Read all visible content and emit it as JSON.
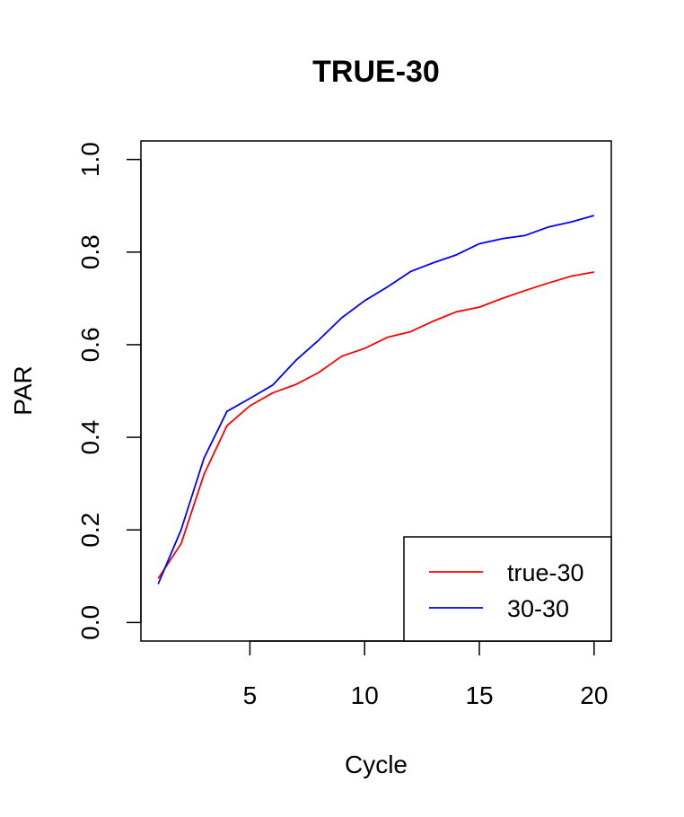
{
  "chart_data": {
    "type": "line",
    "title": "TRUE-30",
    "xlabel": "Cycle",
    "ylabel": "PAR",
    "xlim": [
      0.25,
      20.75
    ],
    "ylim": [
      -0.04,
      1.04
    ],
    "x_ticks": [
      5,
      10,
      15,
      20
    ],
    "y_ticks": [
      0.0,
      0.2,
      0.4,
      0.6,
      0.8,
      1.0
    ],
    "x_tick_labels": [
      "5",
      "10",
      "15",
      "20"
    ],
    "y_tick_labels": [
      "0.0",
      "0.2",
      "0.4",
      "0.6",
      "0.8",
      "1.0"
    ],
    "grid": false,
    "legend_position": "bottom-right",
    "x": [
      1,
      2,
      3,
      4,
      5,
      6,
      7,
      8,
      9,
      10,
      11,
      12,
      13,
      14,
      15,
      16,
      17,
      18,
      19,
      20
    ],
    "series": [
      {
        "name": "true-30",
        "color": "#ff0000",
        "values": [
          0.095,
          0.17,
          0.32,
          0.425,
          0.468,
          0.496,
          0.514,
          0.54,
          0.575,
          0.592,
          0.616,
          0.628,
          0.651,
          0.671,
          0.681,
          0.7,
          0.717,
          0.733,
          0.748,
          0.757
        ]
      },
      {
        "name": "30-30",
        "color": "#0000ff",
        "values": [
          0.083,
          0.2,
          0.355,
          0.456,
          0.484,
          0.513,
          0.566,
          0.61,
          0.658,
          0.695,
          0.725,
          0.758,
          0.777,
          0.794,
          0.818,
          0.829,
          0.836,
          0.854,
          0.865,
          0.879
        ]
      }
    ]
  }
}
